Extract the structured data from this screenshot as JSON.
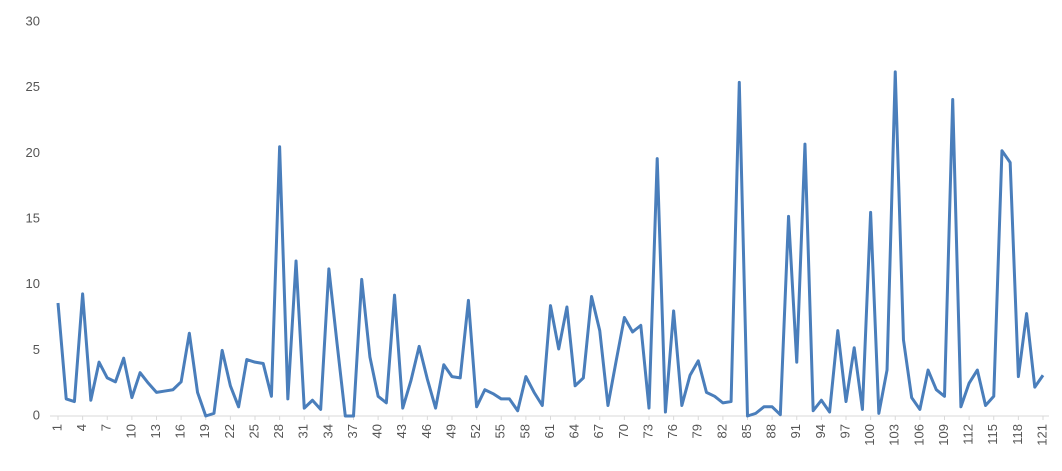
{
  "chart_data": {
    "type": "line",
    "color": "#4a7ebb",
    "grid": false,
    "x": [
      1,
      2,
      3,
      4,
      5,
      6,
      7,
      8,
      9,
      10,
      11,
      12,
      13,
      14,
      15,
      16,
      17,
      18,
      19,
      20,
      21,
      22,
      23,
      24,
      25,
      26,
      27,
      28,
      29,
      30,
      31,
      32,
      33,
      34,
      35,
      36,
      37,
      38,
      39,
      40,
      41,
      42,
      43,
      44,
      45,
      46,
      47,
      48,
      49,
      50,
      51,
      52,
      53,
      54,
      55,
      56,
      57,
      58,
      59,
      60,
      61,
      62,
      63,
      64,
      65,
      66,
      67,
      68,
      69,
      70,
      71,
      72,
      73,
      74,
      75,
      76,
      77,
      78,
      79,
      80,
      81,
      82,
      83,
      84,
      85,
      86,
      87,
      88,
      89,
      90,
      91,
      92,
      93,
      94,
      95,
      96,
      97,
      98,
      99,
      100,
      101,
      102,
      103,
      104,
      105,
      106,
      107,
      108,
      109,
      110,
      111,
      112,
      113,
      114,
      115,
      116,
      117,
      118,
      119,
      120,
      121
    ],
    "values": [
      8.6,
      1.3,
      1.1,
      9.3,
      1.2,
      4.1,
      2.9,
      2.6,
      4.4,
      1.4,
      3.3,
      2.5,
      1.8,
      1.9,
      2.0,
      2.6,
      6.3,
      1.8,
      0.0,
      0.2,
      5.0,
      2.3,
      0.7,
      4.3,
      4.1,
      4.0,
      1.5,
      20.5,
      1.3,
      11.8,
      0.6,
      1.2,
      0.5,
      11.2,
      5.5,
      0.0,
      0.0,
      10.4,
      4.5,
      1.5,
      1.0,
      9.2,
      0.6,
      2.7,
      5.3,
      2.8,
      0.6,
      3.9,
      3.0,
      2.9,
      8.8,
      0.7,
      2.0,
      1.7,
      1.3,
      1.3,
      0.4,
      3.0,
      1.8,
      0.8,
      8.4,
      5.1,
      8.3,
      2.3,
      2.9,
      9.1,
      6.5,
      0.8,
      4.2,
      7.5,
      6.4,
      6.9,
      0.6,
      19.6,
      0.3,
      8.0,
      0.8,
      3.1,
      4.2,
      1.8,
      1.5,
      1.0,
      1.1,
      25.4,
      0.0,
      0.2,
      0.7,
      0.7,
      0.1,
      15.2,
      4.1,
      20.7,
      0.4,
      1.2,
      0.3,
      6.5,
      1.1,
      5.2,
      0.5,
      15.5,
      0.2,
      3.5,
      26.2,
      5.8,
      1.4,
      0.5,
      3.5,
      2.0,
      1.5,
      24.1,
      0.7,
      2.5,
      3.5,
      0.8,
      1.5,
      20.2,
      19.3,
      3.0,
      7.8,
      2.2,
      3.1
    ],
    "xlim": [
      1,
      121
    ],
    "xticks": [
      1,
      4,
      7,
      10,
      13,
      16,
      19,
      22,
      25,
      28,
      31,
      34,
      37,
      40,
      43,
      46,
      49,
      52,
      55,
      58,
      61,
      64,
      67,
      70,
      73,
      76,
      79,
      82,
      85,
      88,
      91,
      94,
      97,
      100,
      103,
      106,
      109,
      112,
      115,
      118,
      121
    ],
    "ylim": [
      0,
      30
    ],
    "yticks": [
      0,
      5,
      10,
      15,
      20,
      25,
      30
    ]
  }
}
